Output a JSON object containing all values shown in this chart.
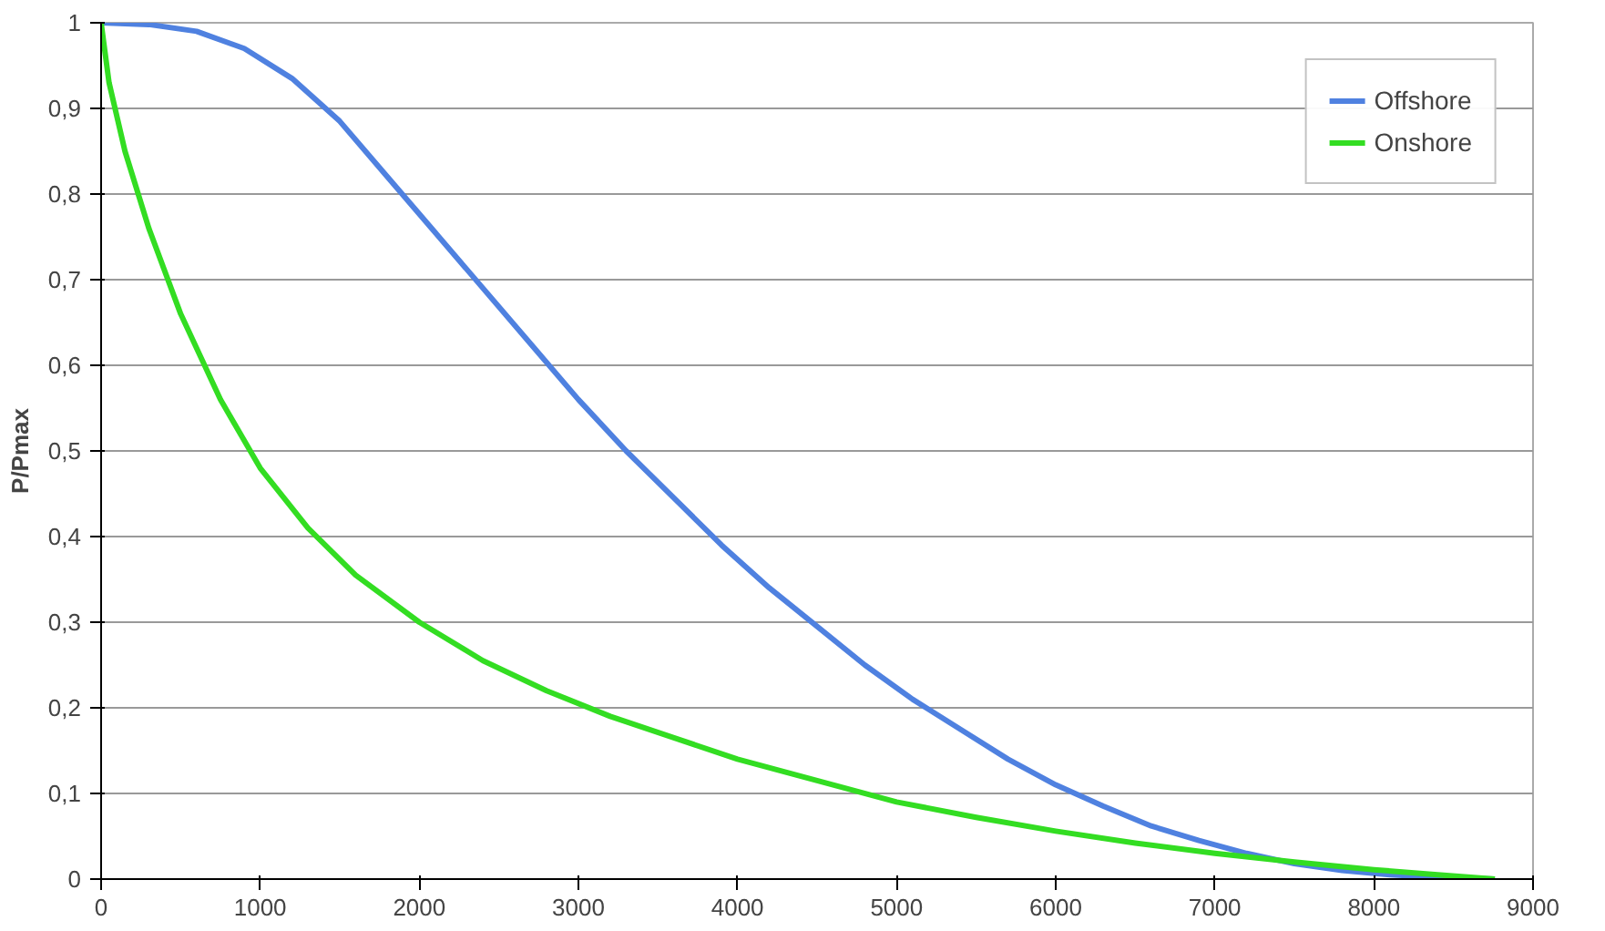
{
  "chart_data": {
    "type": "line",
    "ylabel": "P/Pmax",
    "xlim": [
      0,
      9000
    ],
    "ylim": [
      0,
      1
    ],
    "xticks": [
      0,
      1000,
      2000,
      3000,
      4000,
      5000,
      6000,
      7000,
      8000,
      9000
    ],
    "yticks": [
      0,
      {
        "value": 0.1,
        "label": "0,1"
      },
      {
        "value": 0.2,
        "label": "0,2"
      },
      {
        "value": 0.3,
        "label": "0,3"
      },
      {
        "value": 0.4,
        "label": "0,4"
      },
      {
        "value": 0.5,
        "label": "0,5"
      },
      {
        "value": 0.6,
        "label": "0,6"
      },
      {
        "value": 0.7,
        "label": "0,7"
      },
      {
        "value": 0.8,
        "label": "0,8"
      },
      {
        "value": 0.9,
        "label": "0,9"
      },
      1
    ],
    "grid": "y",
    "legend": "top right",
    "marker": "none",
    "line_style": "solid",
    "series": [
      {
        "name": "Offshore",
        "color": "#4f81e0",
        "x": [
          0,
          300,
          600,
          900,
          1200,
          1500,
          1800,
          2100,
          2400,
          2700,
          3000,
          3300,
          3600,
          3900,
          4200,
          4500,
          4800,
          5100,
          5400,
          5700,
          6000,
          6300,
          6600,
          6900,
          7200,
          7500,
          7800,
          8100,
          8400,
          8760
        ],
        "values": [
          1,
          0.998,
          0.99,
          0.97,
          0.935,
          0.885,
          0.82,
          0.755,
          0.69,
          0.625,
          0.56,
          0.5,
          0.445,
          0.39,
          0.34,
          0.295,
          0.25,
          0.21,
          0.175,
          0.14,
          0.11,
          0.085,
          0.062,
          0.045,
          0.03,
          0.018,
          0.01,
          0.005,
          0.002,
          0
        ]
      },
      {
        "name": "Onshore",
        "color": "#33dd22",
        "x": [
          0,
          50,
          150,
          300,
          500,
          750,
          1000,
          1300,
          1600,
          2000,
          2400,
          2800,
          3200,
          3600,
          4000,
          4500,
          5000,
          5500,
          6000,
          6500,
          7000,
          7500,
          8000,
          8400,
          8760
        ],
        "values": [
          1,
          0.93,
          0.85,
          0.76,
          0.66,
          0.56,
          0.48,
          0.41,
          0.355,
          0.3,
          0.255,
          0.22,
          0.19,
          0.165,
          0.14,
          0.115,
          0.09,
          0.072,
          0.056,
          0.042,
          0.03,
          0.02,
          0.011,
          0.005,
          0
        ]
      }
    ]
  }
}
